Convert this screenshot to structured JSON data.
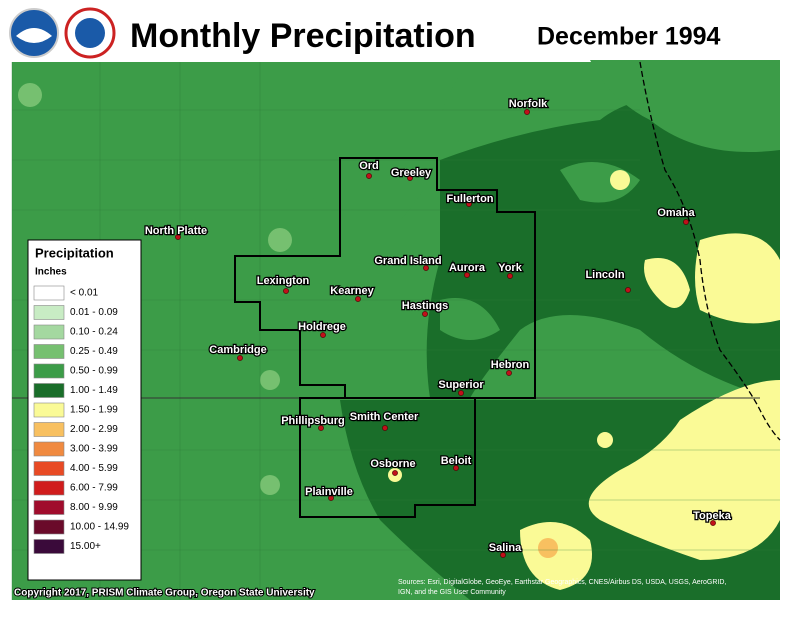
{
  "header": {
    "title": "Monthly Precipitation",
    "date": "December 1994"
  },
  "cities": [
    "Norfolk",
    "Ord",
    "Greeley",
    "Fullerton",
    "North Platte",
    "Omaha",
    "Grand Island",
    "Aurora",
    "York",
    "Lincoln",
    "Lexington",
    "Kearney",
    "Hastings",
    "Holdrege",
    "Cambridge",
    "Hebron",
    "Superior",
    "Phillipsburg",
    "Smith Center",
    "Beloit",
    "Osborne",
    "Plainville",
    "Topeka",
    "Salina"
  ],
  "legend": {
    "title": "Precipitation",
    "units": "Inches",
    "items": [
      {
        "label": "< 0.01",
        "color": "#ffffff"
      },
      {
        "label": "0.01 - 0.09",
        "color": "#c8ecc4"
      },
      {
        "label": "0.10 - 0.24",
        "color": "#a4d8a0"
      },
      {
        "label": "0.25 - 0.49",
        "color": "#76c070"
      },
      {
        "label": "0.50 - 0.99",
        "color": "#3c9c48"
      },
      {
        "label": "1.00 - 1.49",
        "color": "#1a6e2a"
      },
      {
        "label": "1.50 - 1.99",
        "color": "#fafa96"
      },
      {
        "label": "2.00 - 2.99",
        "color": "#f8c060"
      },
      {
        "label": "3.00 - 3.99",
        "color": "#f08a40"
      },
      {
        "label": "4.00 - 5.99",
        "color": "#e84a24"
      },
      {
        "label": "6.00 - 7.99",
        "color": "#d01c1c"
      },
      {
        "label": "8.00 - 9.99",
        "color": "#a00c2c"
      },
      {
        "label": "10.00 - 14.99",
        "color": "#6a0a2a"
      },
      {
        "label": "15.00+",
        "color": "#3a0a3a"
      }
    ]
  },
  "copyright": "Copyright 2017, PRISM Climate Group, Oregon State University",
  "sources": [
    "Sources: Esri, DigitalGlobe, GeoEye, Earthstar Geographics, CNES/Airbus DS, USDA, USGS, AeroGRID,",
    "IGN, and the GIS User Community"
  ]
}
